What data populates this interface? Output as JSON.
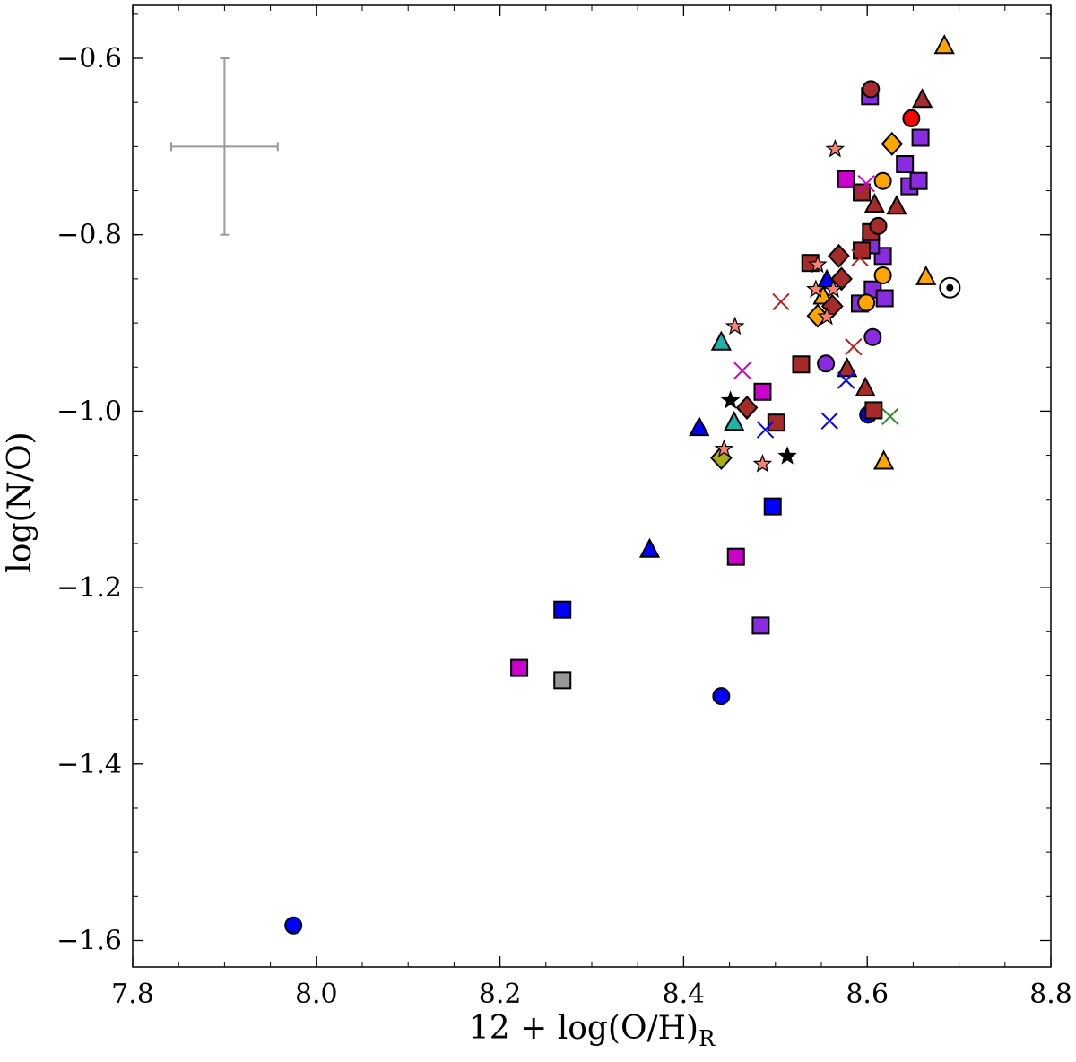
{
  "chart_data": {
    "type": "scatter",
    "title": "",
    "xlabel": "12 + log(O/H)",
    "xlabel_subscript": "R",
    "ylabel": "log(N/O)",
    "xlim": [
      7.8,
      8.8
    ],
    "ylim": [
      -1.63,
      -0.54
    ],
    "x_ticks": [
      7.8,
      8.0,
      8.2,
      8.4,
      8.6,
      8.8
    ],
    "x_tick_labels": [
      "7.8",
      "8.0",
      "8.2",
      "8.4",
      "8.6",
      "8.8"
    ],
    "y_ticks": [
      -1.6,
      -1.4,
      -1.2,
      -1.0,
      -0.8,
      -0.6
    ],
    "y_tick_labels": [
      "−1.6",
      "−1.4",
      "−1.2",
      "−1.0",
      "−0.8",
      "−0.6"
    ],
    "grid": false,
    "legend": "none",
    "error_bar": {
      "x": 7.9,
      "y": -0.7,
      "xerr": 0.058,
      "yerr": 0.1,
      "color": "#999999"
    },
    "sun": {
      "x": 8.69,
      "y": -0.86
    },
    "points": [
      {
        "x": 7.975,
        "y": -1.583,
        "marker": "circle",
        "color": "#0000ff"
      },
      {
        "x": 8.441,
        "y": -1.323,
        "marker": "circle",
        "color": "#0000ff"
      },
      {
        "x": 8.601,
        "y": -1.004,
        "marker": "circle",
        "color": "#0000ff"
      },
      {
        "x": 8.268,
        "y": -1.225,
        "marker": "square",
        "color": "#0000ff"
      },
      {
        "x": 8.497,
        "y": -1.108,
        "marker": "square",
        "color": "#0000ff"
      },
      {
        "x": 8.221,
        "y": -1.291,
        "marker": "square",
        "color": "#cc00cc"
      },
      {
        "x": 8.457,
        "y": -1.165,
        "marker": "square",
        "color": "#cc00cc"
      },
      {
        "x": 8.486,
        "y": -0.978,
        "marker": "square",
        "color": "#cc00cc"
      },
      {
        "x": 8.577,
        "y": -0.737,
        "marker": "square",
        "color": "#cc00cc"
      },
      {
        "x": 8.268,
        "y": -1.305,
        "marker": "square",
        "color": "#999999"
      },
      {
        "x": 8.484,
        "y": -1.243,
        "marker": "square",
        "color": "#8a2be2"
      },
      {
        "x": 8.592,
        "y": -0.878,
        "marker": "square",
        "color": "#8a2be2"
      },
      {
        "x": 8.606,
        "y": -0.862,
        "marker": "square",
        "color": "#8a2be2"
      },
      {
        "x": 8.619,
        "y": -0.872,
        "marker": "square",
        "color": "#8a2be2"
      },
      {
        "x": 8.617,
        "y": -0.824,
        "marker": "square",
        "color": "#8a2be2"
      },
      {
        "x": 8.604,
        "y": -0.812,
        "marker": "square",
        "color": "#8a2be2"
      },
      {
        "x": 8.603,
        "y": -0.643,
        "marker": "square",
        "color": "#8a2be2"
      },
      {
        "x": 8.658,
        "y": -0.69,
        "marker": "square",
        "color": "#8a2be2"
      },
      {
        "x": 8.641,
        "y": -0.72,
        "marker": "square",
        "color": "#8a2be2"
      },
      {
        "x": 8.646,
        "y": -0.745,
        "marker": "square",
        "color": "#8a2be2"
      },
      {
        "x": 8.656,
        "y": -0.739,
        "marker": "square",
        "color": "#8a2be2"
      },
      {
        "x": 8.528,
        "y": -0.947,
        "marker": "square",
        "color": "#a52a2a"
      },
      {
        "x": 8.501,
        "y": -1.013,
        "marker": "square",
        "color": "#a52a2a"
      },
      {
        "x": 8.607,
        "y": -0.999,
        "marker": "square",
        "color": "#a52a2a"
      },
      {
        "x": 8.538,
        "y": -0.832,
        "marker": "square",
        "color": "#a52a2a"
      },
      {
        "x": 8.594,
        "y": -0.818,
        "marker": "square",
        "color": "#a52a2a"
      },
      {
        "x": 8.594,
        "y": -0.752,
        "marker": "square",
        "color": "#a52a2a"
      },
      {
        "x": 8.604,
        "y": -0.797,
        "marker": "square",
        "color": "#a52a2a"
      },
      {
        "x": 8.604,
        "y": -0.635,
        "marker": "circle",
        "color": "#a52a2a"
      },
      {
        "x": 8.612,
        "y": -0.79,
        "marker": "circle",
        "color": "#a52a2a"
      },
      {
        "x": 8.648,
        "y": -0.668,
        "marker": "circle",
        "color": "#ff0000"
      },
      {
        "x": 8.617,
        "y": -0.739,
        "marker": "circle",
        "color": "#ffa500"
      },
      {
        "x": 8.617,
        "y": -0.846,
        "marker": "circle",
        "color": "#ffa500"
      },
      {
        "x": 8.599,
        "y": -0.877,
        "marker": "circle",
        "color": "#ffa500"
      },
      {
        "x": 8.606,
        "y": -0.916,
        "marker": "circle",
        "color": "#8a2be2"
      },
      {
        "x": 8.555,
        "y": -0.946,
        "marker": "circle",
        "color": "#8a2be2"
      },
      {
        "x": 8.684,
        "y": -0.586,
        "marker": "triangle",
        "color": "#ffa500"
      },
      {
        "x": 8.664,
        "y": -0.848,
        "marker": "triangle",
        "color": "#ffa500"
      },
      {
        "x": 8.618,
        "y": -1.057,
        "marker": "triangle",
        "color": "#ffa500"
      },
      {
        "x": 8.552,
        "y": -0.87,
        "marker": "triangle",
        "color": "#ffa500"
      },
      {
        "x": 8.66,
        "y": -0.647,
        "marker": "triangle",
        "color": "#a52a2a"
      },
      {
        "x": 8.608,
        "y": -0.766,
        "marker": "triangle",
        "color": "#a52a2a"
      },
      {
        "x": 8.632,
        "y": -0.768,
        "marker": "triangle",
        "color": "#a52a2a"
      },
      {
        "x": 8.578,
        "y": -0.952,
        "marker": "triangle",
        "color": "#a52a2a"
      },
      {
        "x": 8.598,
        "y": -0.974,
        "marker": "triangle",
        "color": "#a52a2a"
      },
      {
        "x": 8.417,
        "y": -1.019,
        "marker": "triangle",
        "color": "#0000ff"
      },
      {
        "x": 8.363,
        "y": -1.157,
        "marker": "triangle",
        "color": "#0000ff"
      },
      {
        "x": 8.556,
        "y": -0.852,
        "marker": "triangle",
        "color": "#0000ff"
      },
      {
        "x": 8.441,
        "y": -0.922,
        "marker": "triangle",
        "color": "#20b2aa"
      },
      {
        "x": 8.455,
        "y": -1.013,
        "marker": "triangle",
        "color": "#20b2aa"
      },
      {
        "x": 8.627,
        "y": -0.697,
        "marker": "diamond",
        "color": "#ffa500"
      },
      {
        "x": 8.546,
        "y": -0.892,
        "marker": "diamond",
        "color": "#ffa500"
      },
      {
        "x": 8.569,
        "y": -0.824,
        "marker": "diamond",
        "color": "#a52a2a"
      },
      {
        "x": 8.572,
        "y": -0.85,
        "marker": "diamond",
        "color": "#a52a2a"
      },
      {
        "x": 8.562,
        "y": -0.881,
        "marker": "diamond",
        "color": "#a52a2a"
      },
      {
        "x": 8.469,
        "y": -0.996,
        "marker": "diamond",
        "color": "#a52a2a"
      },
      {
        "x": 8.441,
        "y": -1.053,
        "marker": "diamond",
        "color": "#aaaa11"
      },
      {
        "x": 8.565,
        "y": -0.703,
        "marker": "star",
        "color": "#fa8072"
      },
      {
        "x": 8.456,
        "y": -0.904,
        "marker": "star",
        "color": "#fa8072"
      },
      {
        "x": 8.544,
        "y": -0.862,
        "marker": "star",
        "color": "#fa8072"
      },
      {
        "x": 8.556,
        "y": -0.893,
        "marker": "star",
        "color": "#fa8072"
      },
      {
        "x": 8.563,
        "y": -0.862,
        "marker": "star",
        "color": "#fa8072"
      },
      {
        "x": 8.546,
        "y": -0.834,
        "marker": "star",
        "color": "#fa8072"
      },
      {
        "x": 8.444,
        "y": -1.043,
        "marker": "star",
        "color": "#fa8072"
      },
      {
        "x": 8.486,
        "y": -1.06,
        "marker": "star",
        "color": "#fa8072"
      },
      {
        "x": 8.451,
        "y": -0.988,
        "marker": "star",
        "color": "#000000"
      },
      {
        "x": 8.513,
        "y": -1.051,
        "marker": "star",
        "color": "#000000"
      },
      {
        "x": 8.506,
        "y": -0.876,
        "marker": "cross",
        "color": "#b22222"
      },
      {
        "x": 8.585,
        "y": -0.927,
        "marker": "cross",
        "color": "#b22222"
      },
      {
        "x": 8.592,
        "y": -0.826,
        "marker": "cross",
        "color": "#b22222"
      },
      {
        "x": 8.577,
        "y": -0.965,
        "marker": "cross",
        "color": "#0000ff"
      },
      {
        "x": 8.559,
        "y": -1.011,
        "marker": "cross",
        "color": "#0000ff"
      },
      {
        "x": 8.489,
        "y": -1.021,
        "marker": "cross",
        "color": "#0000ff"
      },
      {
        "x": 8.625,
        "y": -1.006,
        "marker": "cross",
        "color": "#228b22"
      },
      {
        "x": 8.464,
        "y": -0.954,
        "marker": "cross",
        "color": "#cc00cc"
      },
      {
        "x": 8.599,
        "y": -0.742,
        "marker": "cross",
        "color": "#cc00cc"
      }
    ]
  }
}
